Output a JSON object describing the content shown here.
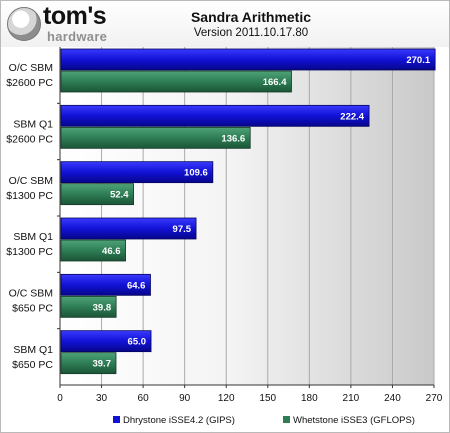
{
  "header": {
    "logo_main": "tom's",
    "logo_sub": "hardware"
  },
  "chart_data": {
    "type": "bar",
    "orientation": "horizontal",
    "title": "Sandra Arithmetic",
    "subtitle": "Version 2011.10.17.80",
    "categories": [
      [
        "O/C SBM",
        "$2600 PC"
      ],
      [
        "SBM Q1",
        "$2600 PC"
      ],
      [
        "O/C SBM",
        "$1300 PC"
      ],
      [
        "SBM Q1",
        "$1300 PC"
      ],
      [
        "O/C SBM",
        "$650 PC"
      ],
      [
        "SBM Q1",
        "$650 PC"
      ]
    ],
    "series": [
      {
        "name": "Dhrystone iSSE4.2 (GIPS)",
        "color": "#1212d6",
        "values": [
          270.1,
          222.4,
          109.6,
          97.5,
          64.6,
          65.0
        ]
      },
      {
        "name": "Whetstone iSSE3 (GFLOPS)",
        "color": "#2e7d55",
        "values": [
          166.4,
          136.6,
          52.4,
          46.6,
          39.8,
          39.7
        ]
      }
    ],
    "xlim": [
      0,
      270
    ],
    "xticks": [
      0,
      30,
      60,
      90,
      120,
      150,
      180,
      210,
      240,
      270
    ],
    "grid": true,
    "legend_position": "bottom"
  }
}
